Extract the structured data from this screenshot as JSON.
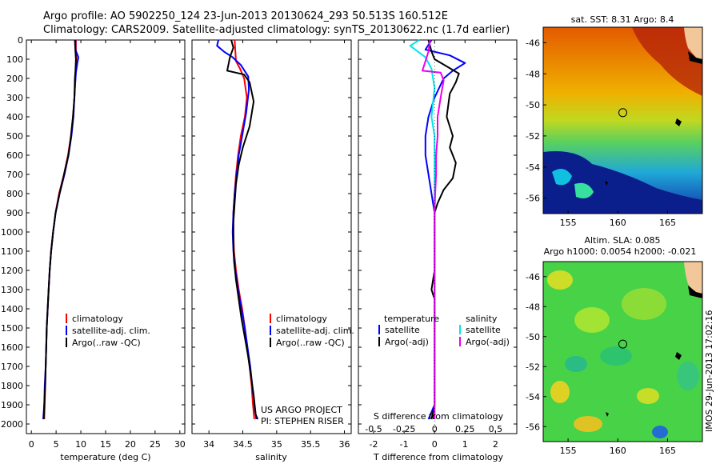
{
  "header": {
    "line1": "Argo profile: AO 5902250_124 23-Jun-2013 20130624_293 50.513S 160.512E",
    "line2": "Climatology: CARS2009. Satellite-adjusted climatology: synTS_20130622.nc (1.7d earlier)"
  },
  "colors": {
    "climatology": "#ff0000",
    "satellite": "#0000ff",
    "argo": "#000000",
    "satellite_salinity": "#00e5ee",
    "argo_salinity": "#ee00ee"
  },
  "chart_data": [
    {
      "id": "temperature",
      "type": "line",
      "xlabel": "temperature (deg C)",
      "xlim": [
        -1,
        31
      ],
      "xticks": [
        0,
        5,
        10,
        15,
        20,
        25,
        30
      ],
      "ylim": [
        0,
        2050
      ],
      "yticks": [
        0,
        100,
        200,
        300,
        400,
        500,
        600,
        700,
        800,
        900,
        1000,
        1100,
        1200,
        1300,
        1400,
        1500,
        1600,
        1700,
        1800,
        1900,
        2000
      ],
      "legend": [
        "climatology",
        "satellite-adj. clim.",
        "Argo(..raw -QC)"
      ],
      "series": [
        {
          "name": "climatology",
          "points": [
            [
              9.0,
              0
            ],
            [
              9.0,
              50
            ],
            [
              9.1,
              100
            ],
            [
              9.0,
              150
            ],
            [
              8.9,
              200
            ],
            [
              8.7,
              300
            ],
            [
              8.4,
              400
            ],
            [
              8.0,
              500
            ],
            [
              7.4,
              600
            ],
            [
              6.6,
              700
            ],
            [
              5.6,
              800
            ],
            [
              4.9,
              900
            ],
            [
              4.4,
              1000
            ],
            [
              4.0,
              1100
            ],
            [
              3.7,
              1200
            ],
            [
              3.5,
              1300
            ],
            [
              3.3,
              1400
            ],
            [
              3.1,
              1500
            ],
            [
              3.0,
              1600
            ],
            [
              2.9,
              1700
            ],
            [
              2.8,
              1800
            ],
            [
              2.7,
              1900
            ],
            [
              2.6,
              1975
            ]
          ]
        },
        {
          "name": "satellite-adj. clim.",
          "points": [
            [
              8.9,
              0
            ],
            [
              8.9,
              50
            ],
            [
              9.5,
              90
            ],
            [
              9.3,
              120
            ],
            [
              9.0,
              170
            ],
            [
              8.8,
              250
            ],
            [
              8.5,
              400
            ],
            [
              8.1,
              500
            ],
            [
              7.5,
              600
            ],
            [
              6.7,
              700
            ],
            [
              5.7,
              800
            ],
            [
              4.9,
              900
            ],
            [
              4.4,
              1000
            ],
            [
              4.0,
              1100
            ],
            [
              3.7,
              1200
            ],
            [
              3.5,
              1300
            ],
            [
              3.3,
              1400
            ],
            [
              3.1,
              1500
            ],
            [
              3.0,
              1600
            ],
            [
              2.9,
              1700
            ],
            [
              2.7,
              1800
            ],
            [
              2.6,
              1900
            ],
            [
              2.4,
              1975
            ]
          ]
        },
        {
          "name": "Argo(..raw -QC)",
          "points": [
            [
              8.8,
              0
            ],
            [
              8.9,
              60
            ],
            [
              9.0,
              100
            ],
            [
              8.9,
              160
            ],
            [
              8.8,
              200
            ],
            [
              8.7,
              300
            ],
            [
              8.4,
              400
            ],
            [
              8.0,
              500
            ],
            [
              7.5,
              600
            ],
            [
              6.6,
              700
            ],
            [
              5.7,
              800
            ],
            [
              4.9,
              900
            ],
            [
              4.4,
              1000
            ],
            [
              4.0,
              1100
            ],
            [
              3.7,
              1200
            ],
            [
              3.5,
              1300
            ],
            [
              3.3,
              1400
            ],
            [
              3.1,
              1500
            ],
            [
              3.0,
              1600
            ],
            [
              2.9,
              1700
            ],
            [
              2.8,
              1800
            ],
            [
              2.6,
              1900
            ],
            [
              2.5,
              1975
            ]
          ]
        }
      ]
    },
    {
      "id": "salinity",
      "type": "line",
      "xlabel": "salinity",
      "xlim": [
        33.75,
        36.1
      ],
      "xticks": [
        34,
        34.5,
        35,
        35.5,
        36
      ],
      "ylim": [
        0,
        2050
      ],
      "legend": [
        "climatology",
        "satellite-adj. clim.",
        "Argo(..raw -QC)"
      ],
      "annotation": [
        "US ARGO PROJECT",
        "PI: STEPHEN RISER"
      ],
      "series": [
        {
          "name": "climatology",
          "points": [
            [
              34.38,
              0
            ],
            [
              34.39,
              60
            ],
            [
              34.4,
              110
            ],
            [
              34.46,
              150
            ],
            [
              34.52,
              200
            ],
            [
              34.56,
              300
            ],
            [
              34.53,
              400
            ],
            [
              34.47,
              500
            ],
            [
              34.43,
              600
            ],
            [
              34.4,
              700
            ],
            [
              34.38,
              800
            ],
            [
              34.36,
              900
            ],
            [
              34.36,
              1000
            ],
            [
              34.37,
              1100
            ],
            [
              34.4,
              1200
            ],
            [
              34.44,
              1300
            ],
            [
              34.49,
              1400
            ],
            [
              34.53,
              1500
            ],
            [
              34.56,
              1600
            ],
            [
              34.6,
              1700
            ],
            [
              34.63,
              1800
            ],
            [
              34.65,
              1900
            ],
            [
              34.67,
              1975
            ]
          ]
        },
        {
          "name": "satellite-adj. clim.",
          "points": [
            [
              34.14,
              0
            ],
            [
              34.12,
              30
            ],
            [
              34.22,
              60
            ],
            [
              34.35,
              90
            ],
            [
              34.47,
              130
            ],
            [
              34.58,
              190
            ],
            [
              34.59,
              260
            ],
            [
              34.55,
              380
            ],
            [
              34.49,
              500
            ],
            [
              34.44,
              600
            ],
            [
              34.41,
              700
            ],
            [
              34.38,
              800
            ],
            [
              34.36,
              900
            ],
            [
              34.35,
              1000
            ],
            [
              34.36,
              1100
            ],
            [
              34.39,
              1200
            ],
            [
              34.43,
              1300
            ],
            [
              34.48,
              1400
            ],
            [
              34.53,
              1500
            ],
            [
              34.57,
              1600
            ],
            [
              34.61,
              1700
            ],
            [
              34.64,
              1800
            ],
            [
              34.67,
              1900
            ],
            [
              34.7,
              1975
            ]
          ]
        },
        {
          "name": "Argo(..raw -QC)",
          "points": [
            [
              34.33,
              0
            ],
            [
              34.36,
              40
            ],
            [
              34.31,
              90
            ],
            [
              34.27,
              160
            ],
            [
              34.52,
              180
            ],
            [
              34.6,
              220
            ],
            [
              34.66,
              320
            ],
            [
              34.6,
              450
            ],
            [
              34.5,
              560
            ],
            [
              34.44,
              650
            ],
            [
              34.4,
              750
            ],
            [
              34.38,
              850
            ],
            [
              34.36,
              950
            ],
            [
              34.36,
              1050
            ],
            [
              34.37,
              1150
            ],
            [
              34.4,
              1250
            ],
            [
              34.44,
              1350
            ],
            [
              34.48,
              1450
            ],
            [
              34.53,
              1550
            ],
            [
              34.58,
              1650
            ],
            [
              34.62,
              1750
            ],
            [
              34.66,
              1850
            ],
            [
              34.69,
              1950
            ],
            [
              34.72,
              1975
            ]
          ]
        }
      ]
    },
    {
      "id": "difference",
      "type": "line",
      "xlabel": "T difference from climatology",
      "xlabel_top": "S difference from climatology",
      "xlim": [
        -2.5,
        2.7
      ],
      "xticks": [
        -2,
        -1,
        0,
        1,
        2
      ],
      "xticks_top": [
        -0.5,
        -0.25,
        0,
        0.25,
        0.5
      ],
      "xticks_top_labels": [
        "-0.5",
        "-0.25",
        "0",
        "0.25",
        "0.5"
      ],
      "ylim": [
        0,
        2050
      ],
      "legend_headers": [
        "temperature",
        "salinity"
      ],
      "legend": [
        "satellite",
        "Argo(-adj)",
        "satellite",
        "Argo(-adj)"
      ],
      "series": [
        {
          "name": "temperature satellite",
          "points": [
            [
              -0.1,
              0
            ],
            [
              -0.3,
              50
            ],
            [
              0.5,
              80
            ],
            [
              1.0,
              120
            ],
            [
              0.6,
              160
            ],
            [
              0.3,
              200
            ],
            [
              0.0,
              300
            ],
            [
              -0.2,
              400
            ],
            [
              -0.3,
              500
            ],
            [
              -0.3,
              600
            ],
            [
              -0.2,
              700
            ],
            [
              -0.1,
              800
            ],
            [
              0,
              900
            ],
            [
              0,
              1000
            ],
            [
              0,
              1100
            ],
            [
              0,
              1200
            ],
            [
              0,
              1300
            ],
            [
              0,
              1400
            ],
            [
              0,
              1500
            ],
            [
              0,
              1600
            ],
            [
              0,
              1700
            ],
            [
              0,
              1800
            ],
            [
              0,
              1900
            ],
            [
              -0.2,
              1975
            ]
          ]
        },
        {
          "name": "temperature Argo(-adj)",
          "points": [
            [
              -0.2,
              0
            ],
            [
              -0.1,
              60
            ],
            [
              0.0,
              100
            ],
            [
              0.8,
              175
            ],
            [
              0.7,
              220
            ],
            [
              0.5,
              280
            ],
            [
              0.4,
              400
            ],
            [
              0.6,
              500
            ],
            [
              0.5,
              560
            ],
            [
              0.7,
              640
            ],
            [
              0.6,
              720
            ],
            [
              0.3,
              780
            ],
            [
              0.1,
              850
            ],
            [
              0,
              900
            ],
            [
              0,
              1000
            ],
            [
              0,
              1100
            ],
            [
              0,
              1200
            ],
            [
              -0.1,
              1300
            ],
            [
              0,
              1350
            ],
            [
              0,
              1500
            ],
            [
              0,
              1700
            ],
            [
              0,
              1900
            ],
            [
              -0.1,
              1975
            ]
          ]
        },
        {
          "name": "salinity satellite",
          "points": [
            [
              -0.5,
              0
            ],
            [
              -0.8,
              30
            ],
            [
              -0.3,
              90
            ],
            [
              -0.1,
              150
            ],
            [
              0.0,
              250
            ],
            [
              -0.1,
              400
            ],
            [
              0.0,
              500
            ],
            [
              0.0,
              600
            ],
            [
              0.0,
              700
            ],
            [
              0,
              800
            ],
            [
              0,
              900
            ],
            [
              0,
              1000
            ],
            [
              0,
              1100
            ],
            [
              0,
              1200
            ],
            [
              0,
              1300
            ],
            [
              0,
              1400
            ],
            [
              0,
              1500
            ],
            [
              0,
              1600
            ],
            [
              0,
              1700
            ],
            [
              0,
              1800
            ],
            [
              0,
              1900
            ],
            [
              0,
              1975
            ]
          ]
        },
        {
          "name": "salinity Argo(-adj)",
          "points": [
            [
              -0.15,
              0
            ],
            [
              -0.2,
              60
            ],
            [
              -0.4,
              160
            ],
            [
              0.2,
              170
            ],
            [
              0.3,
              210
            ],
            [
              0.2,
              300
            ],
            [
              0.1,
              400
            ],
            [
              0.1,
              500
            ],
            [
              0.05,
              600
            ],
            [
              0.05,
              700
            ],
            [
              0.02,
              800
            ],
            [
              0,
              900
            ],
            [
              0,
              1000
            ],
            [
              0,
              1100
            ],
            [
              0,
              1200
            ],
            [
              0,
              1300
            ],
            [
              0,
              1400
            ],
            [
              0,
              1500
            ],
            [
              0,
              1600
            ],
            [
              0,
              1700
            ],
            [
              0,
              1800
            ],
            [
              0,
              1900
            ],
            [
              0,
              1975
            ]
          ]
        }
      ]
    }
  ],
  "maps": [
    {
      "id": "sst-map",
      "title": [
        "sat. SST: 8.31 Argo: 8.4"
      ],
      "lon_ticks": [
        155,
        160,
        165
      ],
      "lat_ticks": [
        -46,
        -48,
        -50,
        -52,
        -54,
        -56
      ],
      "lon_range": [
        152.5,
        168.5
      ],
      "lat_range": [
        -57,
        -45
      ],
      "marker": {
        "lon": 160.5,
        "lat": -50.5
      }
    },
    {
      "id": "sla-map",
      "title": [
        "Altim. SLA: 0.085",
        "Argo h1000: 0.0054 h2000: -0.021"
      ],
      "lon_ticks": [
        155,
        160,
        165
      ],
      "lat_ticks": [
        -46,
        -48,
        -50,
        -52,
        -54,
        -56
      ],
      "lon_range": [
        152.5,
        168.5
      ],
      "lat_range": [
        -57,
        -45
      ],
      "marker": {
        "lon": 160.5,
        "lat": -50.5
      }
    }
  ],
  "side_label": "IMOS 29-Jun-2013 17:02:16"
}
